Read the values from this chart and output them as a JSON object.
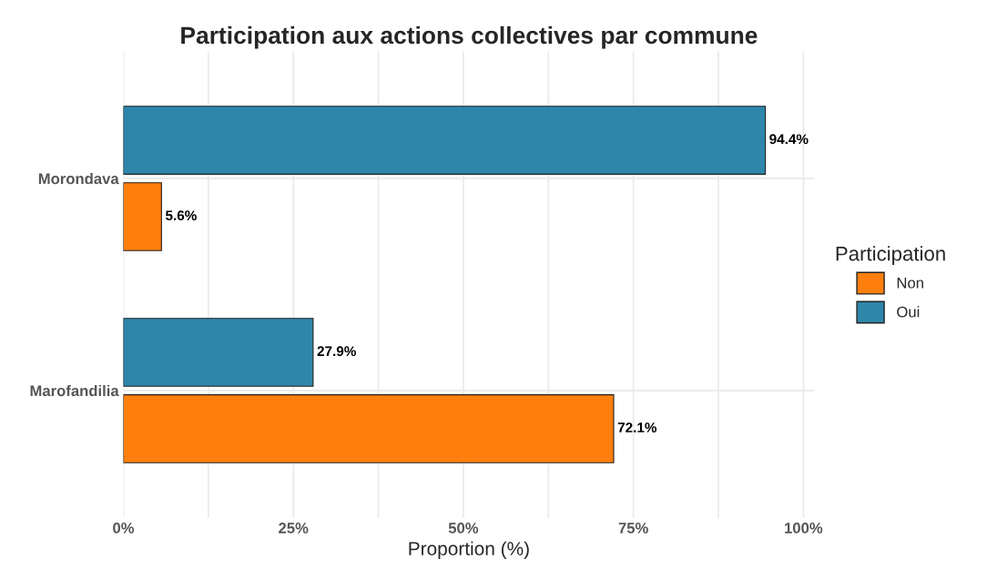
{
  "chart_data": {
    "type": "bar",
    "orientation": "horizontal",
    "title": "Participation aux actions collectives par commune",
    "xlabel": "Proportion (%)",
    "legend_title": "Participation",
    "legend": "right",
    "grid": true,
    "categories": [
      "Morondava",
      "Marofandilia"
    ],
    "series": [
      {
        "name": "Non",
        "color": "#ff7f0e",
        "values": [
          5.6,
          72.1
        ],
        "value_labels": [
          "5.6%",
          "72.1%"
        ]
      },
      {
        "name": "Oui",
        "color": "#2e86ab",
        "values": [
          94.4,
          27.9
        ],
        "value_labels": [
          "94.4%",
          "27.9%"
        ]
      }
    ],
    "xlim": [
      0,
      101.6
    ],
    "xticks": [
      {
        "value": 0,
        "label": "0%"
      },
      {
        "value": 12.5,
        "label": null
      },
      {
        "value": 25,
        "label": "25%"
      },
      {
        "value": 37.5,
        "label": null
      },
      {
        "value": 50,
        "label": "50%"
      },
      {
        "value": 62.5,
        "label": null
      },
      {
        "value": 75,
        "label": "75%"
      },
      {
        "value": 87.5,
        "label": null
      },
      {
        "value": 100,
        "label": "100%"
      }
    ]
  }
}
